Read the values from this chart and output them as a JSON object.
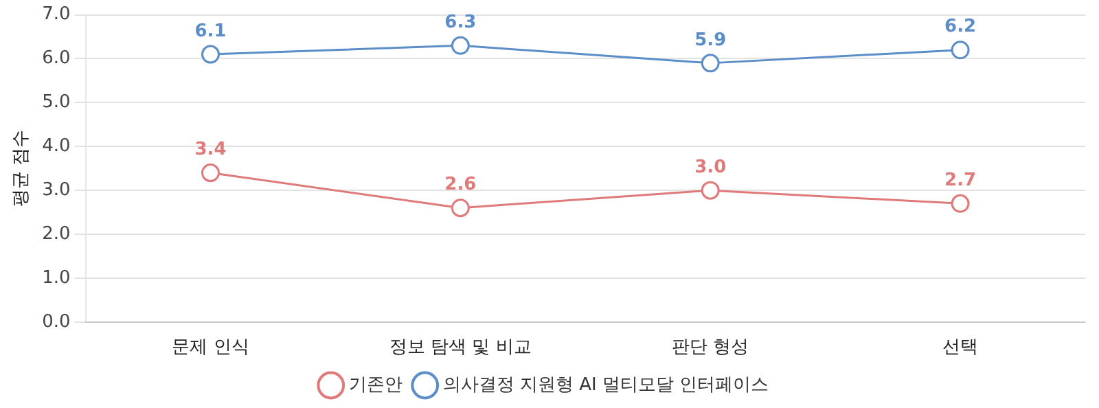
{
  "chart_data": {
    "type": "line",
    "ylabel": "평균 점수",
    "categories": [
      "문제 인식",
      "정보 탐색 및 비교",
      "판단 형성",
      "선택"
    ],
    "series": [
      {
        "name": "기존안",
        "color": "#e07a7a",
        "values": [
          3.4,
          2.6,
          3.0,
          2.7
        ],
        "value_labels": [
          "3.4",
          "2.6",
          "3.0",
          "2.7"
        ]
      },
      {
        "name": "의사결정 지원형 AI 멀티모달 인터페이스",
        "color": "#5b8dc8",
        "values": [
          6.1,
          6.3,
          5.9,
          6.2
        ],
        "value_labels": [
          "6.1",
          "6.3",
          "5.9",
          "6.2"
        ]
      }
    ],
    "ylim": [
      0,
      7
    ],
    "yticks": [
      {
        "value": 0,
        "label": "0.0"
      },
      {
        "value": 1,
        "label": "1.0"
      },
      {
        "value": 2,
        "label": "2.0"
      },
      {
        "value": 3,
        "label": "3.0"
      },
      {
        "value": 4,
        "label": "4.0"
      },
      {
        "value": 5,
        "label": "5.0"
      },
      {
        "value": 6,
        "label": "6.0"
      },
      {
        "value": 7,
        "label": "7.0"
      }
    ],
    "grid": "y",
    "legend": "bottom",
    "marker": "circle",
    "line_style": "solid"
  }
}
